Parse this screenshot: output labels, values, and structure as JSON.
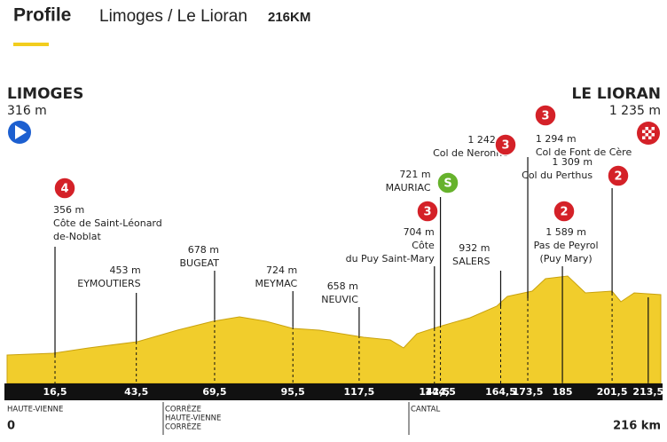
{
  "header": {
    "title": "Profile",
    "route": "Limoges / Le Lioran",
    "distance": "216KM"
  },
  "start": {
    "name": "LIMOGES",
    "altitude": "316 m"
  },
  "finish": {
    "name": "LE LIORAN",
    "altitude": "1 235 m"
  },
  "points": [
    {
      "km": "16,5",
      "altitude": "356 m",
      "name": [
        "Côte de Saint-Léonard",
        "de-Noblat"
      ],
      "category": "4"
    },
    {
      "km": "43,5",
      "altitude": "453 m",
      "name": [
        "EYMOUTIERS"
      ]
    },
    {
      "km": "69,5",
      "altitude": "678 m",
      "name": [
        "BUGEAT"
      ]
    },
    {
      "km": "95,5",
      "altitude": "724 m",
      "name": [
        "MEYMAC"
      ]
    },
    {
      "km": "117,5",
      "altitude": "658 m",
      "name": [
        "NEUVIC"
      ]
    },
    {
      "km": "142,5",
      "altitude": "704 m",
      "name": [
        "Côte",
        "du Puy Saint-Mary"
      ],
      "category": "3"
    },
    {
      "km": "144,5",
      "altitude": "721 m",
      "name": [
        "MAURIAC"
      ],
      "sprint": "S"
    },
    {
      "km": "164,5",
      "altitude": "932 m",
      "name": [
        "SALERS"
      ]
    },
    {
      "km": "173,5",
      "altitude": "1 242 m",
      "name": [
        "Col de Neronne"
      ],
      "category": "3"
    },
    {
      "km": "185",
      "altitude": "1 589 m",
      "name": [
        "Pas de Peyrol",
        "(Puy Mary)"
      ],
      "category": "2"
    },
    {
      "km": "201,5",
      "altitude": "1 309 m",
      "name": [
        "Col du Perthus"
      ],
      "category": "2"
    },
    {
      "km": "213,5",
      "altitude": "1 294 m",
      "name": [
        "Col de Font de Cère"
      ],
      "category": "3"
    }
  ],
  "axis": {
    "start": "0",
    "end": "216 km"
  },
  "departments": [
    [
      "HAUTE-VIENNE"
    ],
    [
      "CORRÈZE",
      "HAUTE-VIENNE",
      "CORRÈZE"
    ],
    [
      "CANTAL"
    ]
  ]
}
